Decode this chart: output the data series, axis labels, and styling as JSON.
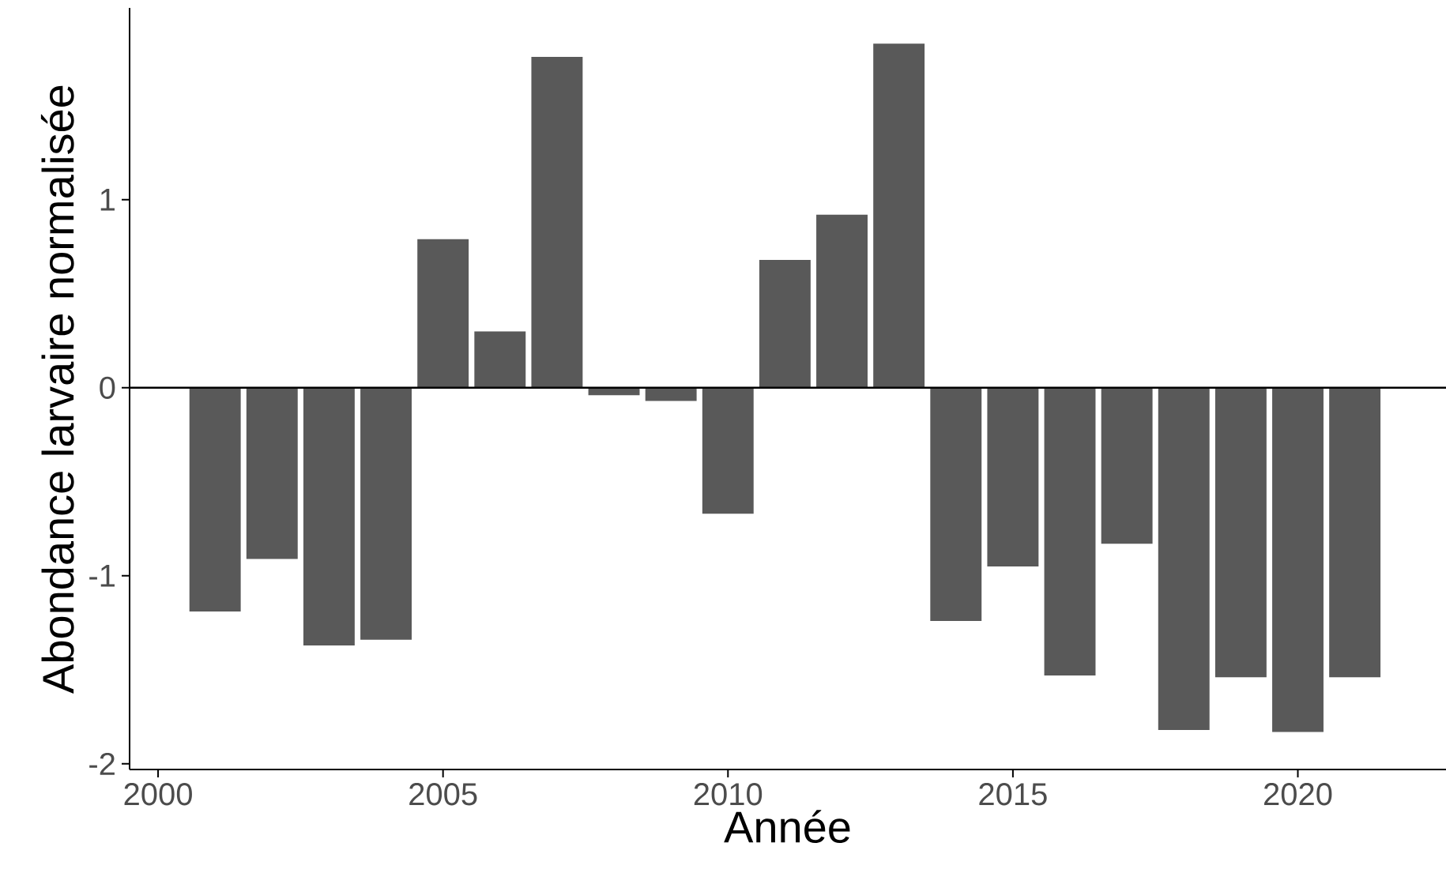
{
  "chart_data": {
    "type": "bar",
    "xlabel": "Année",
    "ylabel": "Abondance larvaire normalisée",
    "x": [
      2001,
      2002,
      2003,
      2004,
      2005,
      2006,
      2007,
      2008,
      2009,
      2010,
      2011,
      2012,
      2013,
      2014,
      2015,
      2016,
      2017,
      2018,
      2019,
      2020,
      2021
    ],
    "values": [
      -1.19,
      -0.91,
      -1.37,
      -1.34,
      0.79,
      0.3,
      1.76,
      -0.04,
      -0.07,
      -0.67,
      0.68,
      0.92,
      1.83,
      -1.24,
      -0.95,
      -1.53,
      -0.83,
      -1.82,
      -1.54,
      -1.83,
      -1.54
    ],
    "color": "#595959",
    "xlim": [
      1999.5,
      2022.6
    ],
    "ylim": [
      -2.03,
      2.02
    ],
    "xticks": [
      2000,
      2005,
      2010,
      2015,
      2020
    ],
    "yticks": [
      -2,
      -1,
      0,
      1
    ],
    "ref_lines": [
      {
        "axis": "y",
        "value": 0,
        "color": "#000000"
      }
    ]
  }
}
